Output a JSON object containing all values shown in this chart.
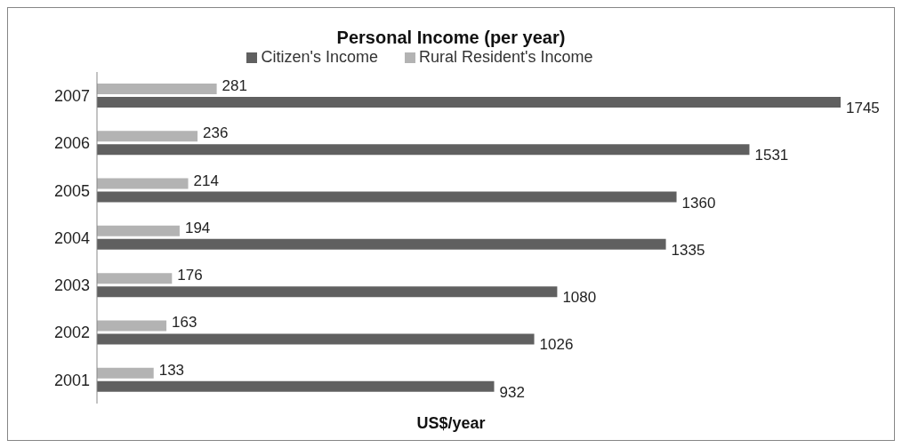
{
  "chart_data": {
    "type": "bar",
    "orientation": "horizontal",
    "title": "Personal Income (per year)",
    "xlabel": "US$/year",
    "categories": [
      "2007",
      "2006",
      "2005",
      "2004",
      "2003",
      "2002",
      "2001"
    ],
    "series": [
      {
        "name": "Rural Resident's Income",
        "color": "#b3b3b3",
        "values": [
          281,
          236,
          214,
          194,
          176,
          163,
          133
        ]
      },
      {
        "name": "Citizen's Income",
        "color": "#606060",
        "values": [
          1745,
          1531,
          1360,
          1335,
          1080,
          1026,
          932
        ]
      }
    ],
    "data_labels": true,
    "legend": "top",
    "grid": false
  }
}
